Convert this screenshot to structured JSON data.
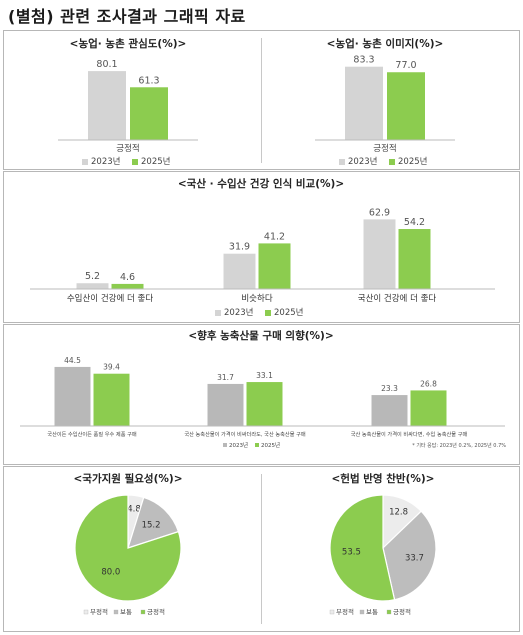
{
  "page": {
    "title": "(별첨) 관련 조사결과 그래픽 자료"
  },
  "colors": {
    "c2023": "#d4d4d4",
    "c2025": "#8ccc4f",
    "grey_bar": "#b8b8b8",
    "pie_grey": "#bdbdbd",
    "pie_light": "#ececec",
    "pie_green": "#8ccc4f"
  },
  "chart_data": [
    {
      "type": "bar",
      "title": "<농업· 농촌 관심도(%)>",
      "categories": [
        "긍정적"
      ],
      "series": [
        {
          "name": "2023년",
          "values": [
            80.1
          ]
        },
        {
          "name": "2025년",
          "values": [
            61.3
          ]
        }
      ],
      "data_labels": [
        [
          "80.1"
        ],
        [
          "61.3"
        ]
      ],
      "legend": "bottom",
      "ylim": [
        0,
        100
      ]
    },
    {
      "type": "bar",
      "title": "<농업· 농촌 이미지(%)>",
      "categories": [
        "긍정적"
      ],
      "series": [
        {
          "name": "2023년",
          "values": [
            83.3
          ]
        },
        {
          "name": "2025년",
          "values": [
            77.0
          ]
        }
      ],
      "data_labels": [
        [
          "83.3"
        ],
        [
          "77.0"
        ]
      ],
      "legend": "bottom",
      "ylim": [
        0,
        100
      ]
    },
    {
      "type": "bar",
      "title": "<국산 · 수입산 건강 인식 비교(%)>",
      "categories": [
        "수입산이 건강에 더 좋다",
        "비슷하다",
        "국산이 건강에 더 좋다"
      ],
      "series": [
        {
          "name": "2023년",
          "values": [
            5.2,
            31.9,
            62.9
          ]
        },
        {
          "name": "2025년",
          "values": [
            4.6,
            41.2,
            54.2
          ]
        }
      ],
      "data_labels": [
        [
          "5.2",
          "31.9",
          "62.9"
        ],
        [
          "4.6",
          "41.2",
          "54.2"
        ]
      ],
      "legend": "bottom",
      "ylim": [
        0,
        75
      ]
    },
    {
      "type": "bar",
      "title": "<향후 농축산물 구매 의향(%)>",
      "categories": [
        "국산이든 수입산이든 품질 우수 제품 구매",
        "국산 농축산물이 가격이 비싸더라도, 국산 농축산물 구매",
        "국산 농축산물이 가격이 비싸다면, 수입 농축산물 구매"
      ],
      "series": [
        {
          "name": "2023년",
          "values": [
            44.5,
            31.7,
            23.3
          ]
        },
        {
          "name": "2025년",
          "values": [
            39.4,
            33.1,
            26.8
          ]
        }
      ],
      "data_labels": [
        [
          "44.5",
          "31.7",
          "23.3"
        ],
        [
          "39.4",
          "33.1",
          "26.8"
        ]
      ],
      "legend": "bottom",
      "annotation": "* 기타 응답: 2023년 0.2%, 2025년 0.7%",
      "ylim": [
        0,
        55
      ]
    },
    {
      "type": "pie",
      "title": "<국가지원 필요성(%)>",
      "labels": [
        "부정적",
        "보통",
        "긍정적"
      ],
      "values": [
        4.8,
        15.2,
        80.0
      ],
      "value_labels": [
        "4.8",
        "15.2",
        "80.0"
      ],
      "legend": "bottom-left"
    },
    {
      "type": "pie",
      "title": "<헌법 반영 찬반(%)>",
      "labels": [
        "부정적",
        "보통",
        "긍정적"
      ],
      "values": [
        12.8,
        33.7,
        53.5
      ],
      "value_labels": [
        "12.8",
        "33.7",
        "53.5"
      ],
      "legend": "bottom-left"
    }
  ]
}
